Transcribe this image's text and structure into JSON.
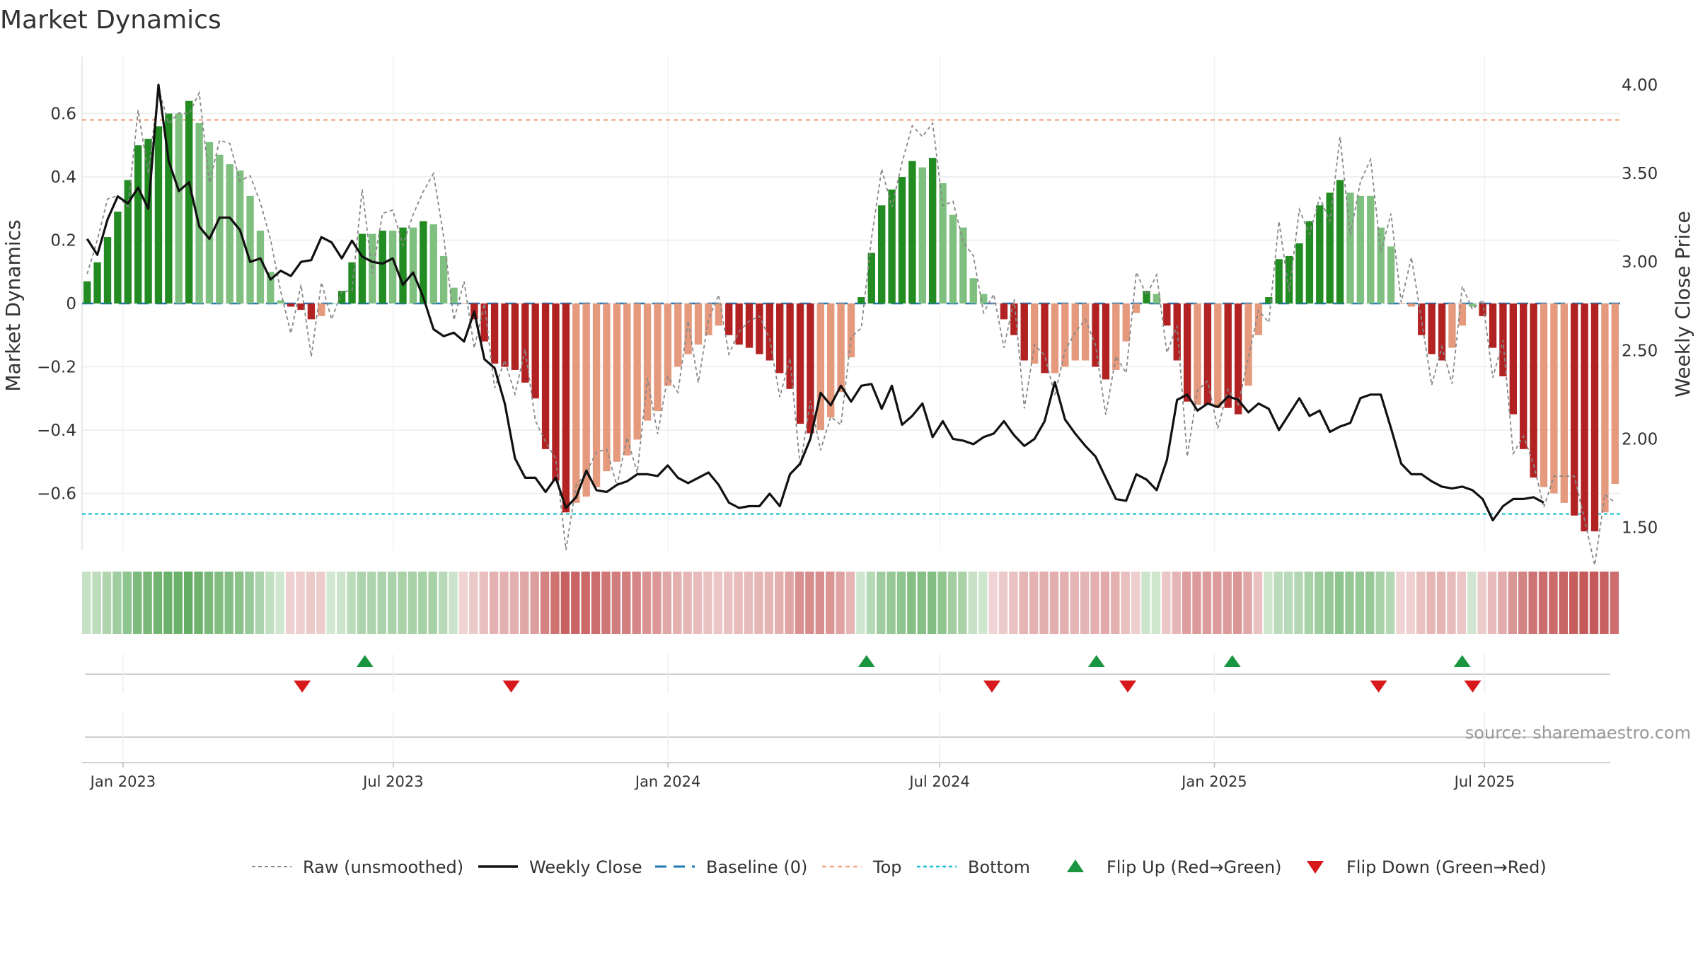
{
  "chart_data": {
    "type": "bar",
    "title": "Market Dynamics",
    "ylabel": "Market Dynamics",
    "y2label": "Weekly Close Price",
    "ylim": [
      -0.78,
      0.78
    ],
    "y2lim": [
      1.37,
      4.16
    ],
    "yticks": [
      0.6,
      0.4,
      0.2,
      0,
      -0.2,
      -0.4,
      -0.6
    ],
    "ytick_labels": [
      "0.6",
      "0.4",
      "0.2",
      "0",
      "−0.2",
      "−0.4",
      "−0.6"
    ],
    "y2ticks": [
      4.0,
      3.5,
      3.0,
      2.5,
      2.0,
      1.5
    ],
    "y2tick_labels": [
      "4.00",
      "3.50",
      "3.00",
      "2.50",
      "2.00",
      "1.50"
    ],
    "x_start": "2022-12-19",
    "x_end": "2025-09-22",
    "date_ticks": [
      "2023-01-01",
      "2023-07-01",
      "2024-01-01",
      "2024-07-01",
      "2025-01-01",
      "2025-07-01"
    ],
    "date_tick_labels": [
      "Jan 2023",
      "Jul 2023",
      "Jan 2024",
      "Jul 2024",
      "Jan 2025",
      "Jul 2025"
    ],
    "top_line": 0.58,
    "bottom_line": -0.665,
    "baseline": 0,
    "colors": {
      "strong_up": "#228b22",
      "weak_up": "#7fbf7f",
      "strong_down": "#b22222",
      "weak_down": "#e59a7e",
      "close": "#111111",
      "raw": "#888888",
      "baseline": "#1f77b4",
      "top": "#f4a582",
      "bottom": "#17becf",
      "flip_up": "#1a9641",
      "flip_down": "#d7191c"
    },
    "bars": [
      0.07,
      0.13,
      0.21,
      0.29,
      0.39,
      0.5,
      0.52,
      0.56,
      0.6,
      0.6,
      0.64,
      0.57,
      0.51,
      0.47,
      0.44,
      0.42,
      0.34,
      0.23,
      0.1,
      0.01,
      -0.01,
      -0.02,
      -0.05,
      -0.04,
      0.0,
      0.04,
      0.13,
      0.22,
      0.22,
      0.23,
      0.23,
      0.24,
      0.24,
      0.26,
      0.25,
      0.15,
      0.05,
      0.0,
      -0.05,
      -0.12,
      -0.19,
      -0.2,
      -0.21,
      -0.25,
      -0.3,
      -0.46,
      -0.56,
      -0.66,
      -0.63,
      -0.61,
      -0.58,
      -0.53,
      -0.5,
      -0.48,
      -0.43,
      -0.37,
      -0.34,
      -0.26,
      -0.2,
      -0.16,
      -0.13,
      -0.1,
      -0.07,
      -0.1,
      -0.13,
      -0.14,
      -0.16,
      -0.18,
      -0.22,
      -0.27,
      -0.38,
      -0.41,
      -0.4,
      -0.36,
      -0.28,
      -0.17,
      0.02,
      0.16,
      0.31,
      0.36,
      0.4,
      0.45,
      0.43,
      0.46,
      0.38,
      0.28,
      0.24,
      0.08,
      0.03,
      0.0,
      -0.05,
      -0.1,
      -0.18,
      -0.19,
      -0.22,
      -0.22,
      -0.2,
      -0.18,
      -0.18,
      -0.2,
      -0.24,
      -0.21,
      -0.12,
      -0.03,
      0.04,
      0.03,
      -0.07,
      -0.18,
      -0.31,
      -0.32,
      -0.32,
      -0.33,
      -0.33,
      -0.35,
      -0.26,
      -0.1,
      0.02,
      0.14,
      0.15,
      0.19,
      0.26,
      0.31,
      0.35,
      0.39,
      0.35,
      0.34,
      0.34,
      0.24,
      0.18,
      0.0,
      -0.01,
      -0.1,
      -0.16,
      -0.18,
      -0.14,
      -0.07,
      -0.01,
      -0.04,
      -0.14,
      -0.23,
      -0.35,
      -0.46,
      -0.55,
      -0.58,
      -0.6,
      -0.63,
      -0.67,
      -0.72,
      -0.72,
      -0.66,
      -0.57
    ],
    "bar_kinds": [
      "strong_up",
      "strong_up",
      "strong_up",
      "strong_up",
      "strong_up",
      "strong_up",
      "strong_up",
      "strong_up",
      "strong_up",
      "weak_up",
      "strong_up",
      "weak_up",
      "weak_up",
      "weak_up",
      "weak_up",
      "weak_up",
      "weak_up",
      "weak_up",
      "weak_up",
      "weak_up",
      "strong_down",
      "strong_down",
      "strong_down",
      "weak_down",
      "weak_up",
      "strong_up",
      "strong_up",
      "strong_up",
      "weak_up",
      "strong_up",
      "weak_up",
      "strong_up",
      "weak_up",
      "strong_up",
      "weak_up",
      "weak_up",
      "weak_up",
      "weak_down",
      "strong_down",
      "strong_down",
      "strong_down",
      "strong_down",
      "strong_down",
      "strong_down",
      "strong_down",
      "strong_down",
      "strong_down",
      "strong_down",
      "weak_down",
      "weak_down",
      "weak_down",
      "weak_down",
      "weak_down",
      "weak_down",
      "weak_down",
      "weak_down",
      "weak_down",
      "weak_down",
      "weak_down",
      "weak_down",
      "weak_down",
      "weak_down",
      "weak_down",
      "strong_down",
      "strong_down",
      "strong_down",
      "strong_down",
      "strong_down",
      "strong_down",
      "strong_down",
      "strong_down",
      "strong_down",
      "weak_down",
      "weak_down",
      "weak_down",
      "weak_down",
      "strong_up",
      "strong_up",
      "strong_up",
      "strong_up",
      "strong_up",
      "strong_up",
      "weak_up",
      "strong_up",
      "weak_up",
      "weak_up",
      "weak_up",
      "weak_up",
      "weak_up",
      "weak_down",
      "strong_down",
      "strong_down",
      "strong_down",
      "weak_down",
      "strong_down",
      "weak_down",
      "weak_down",
      "weak_down",
      "weak_down",
      "strong_down",
      "strong_down",
      "weak_down",
      "weak_down",
      "weak_down",
      "strong_up",
      "weak_up",
      "strong_down",
      "strong_down",
      "strong_down",
      "weak_down",
      "strong_down",
      "weak_down",
      "strong_down",
      "strong_down",
      "weak_down",
      "weak_down",
      "strong_up",
      "strong_up",
      "strong_up",
      "strong_up",
      "strong_up",
      "strong_up",
      "strong_up",
      "strong_up",
      "weak_up",
      "weak_up",
      "weak_up",
      "weak_up",
      "weak_up",
      "weak_down",
      "weak_down",
      "strong_down",
      "strong_down",
      "strong_down",
      "weak_down",
      "weak_down",
      "weak_up",
      "strong_down",
      "strong_down",
      "strong_down",
      "strong_down",
      "strong_down",
      "strong_down",
      "weak_down",
      "weak_down",
      "weak_down",
      "strong_down",
      "strong_down",
      "strong_down",
      "weak_down",
      "weak_down"
    ],
    "close": [
      3.13,
      3.04,
      3.24,
      3.37,
      3.33,
      3.42,
      3.3,
      4.0,
      3.57,
      3.4,
      3.45,
      3.2,
      3.13,
      3.25,
      3.25,
      3.18,
      3.0,
      3.02,
      2.9,
      2.95,
      2.92,
      3.0,
      3.01,
      3.14,
      3.11,
      3.02,
      3.12,
      3.03,
      3.0,
      2.99,
      3.02,
      2.87,
      2.94,
      2.8,
      2.62,
      2.58,
      2.6,
      2.55,
      2.72,
      2.45,
      2.4,
      2.2,
      1.89,
      1.78,
      1.78,
      1.7,
      1.78,
      1.61,
      1.67,
      1.82,
      1.71,
      1.7,
      1.74,
      1.76,
      1.8,
      1.8,
      1.79,
      1.85,
      1.78,
      1.75,
      1.78,
      1.81,
      1.74,
      1.64,
      1.61,
      1.62,
      1.62,
      1.69,
      1.62,
      1.8,
      1.86,
      2.0,
      2.26,
      2.19,
      2.3,
      2.21,
      2.3,
      2.31,
      2.17,
      2.3,
      2.08,
      2.13,
      2.2,
      2.01,
      2.1,
      2.0,
      1.99,
      1.97,
      2.01,
      2.03,
      2.1,
      2.02,
      1.96,
      2.0,
      2.1,
      2.32,
      2.11,
      2.03,
      1.96,
      1.9,
      1.78,
      1.66,
      1.65,
      1.8,
      1.77,
      1.71,
      1.88,
      2.22,
      2.25,
      2.16,
      2.2,
      2.18,
      2.24,
      2.22,
      2.15,
      2.2,
      2.17,
      2.05,
      2.14,
      2.23,
      2.13,
      2.16,
      2.04,
      2.07,
      2.09,
      2.23,
      2.25,
      2.25,
      2.06,
      1.86,
      1.8,
      1.8,
      1.76,
      1.73,
      1.72,
      1.73,
      1.71,
      1.66,
      1.54,
      1.62,
      1.66,
      1.66,
      1.67,
      1.64
    ],
    "raw_offsets": [
      0.05,
      0.08,
      0.12,
      0.06,
      -0.08,
      0.07,
      -0.1,
      0.12,
      -0.05,
      0.02,
      -0.09,
      0.1,
      -0.12,
      0.05,
      0.07,
      -0.06
    ],
    "flip_up_dates": [
      "2023-06-12",
      "2024-05-13",
      "2024-10-14",
      "2025-01-13",
      "2025-06-16"
    ],
    "flip_down_dates": [
      "2023-05-01",
      "2023-09-18",
      "2024-08-05",
      "2024-11-04",
      "2025-04-21",
      "2025-06-23"
    ],
    "legend": [
      {
        "key": "raw",
        "label": "Raw (unsmoothed)"
      },
      {
        "key": "close",
        "label": "Weekly Close"
      },
      {
        "key": "baseline",
        "label": "Baseline (0)"
      },
      {
        "key": "top",
        "label": "Top"
      },
      {
        "key": "bottom",
        "label": "Bottom"
      },
      {
        "key": "flip_up",
        "label": "Flip Up (Red→Green)"
      },
      {
        "key": "flip_down",
        "label": "Flip Down (Green→Red)"
      }
    ],
    "grid": true,
    "legend_placement": "bottom"
  },
  "source": "source: sharemaestro.com"
}
